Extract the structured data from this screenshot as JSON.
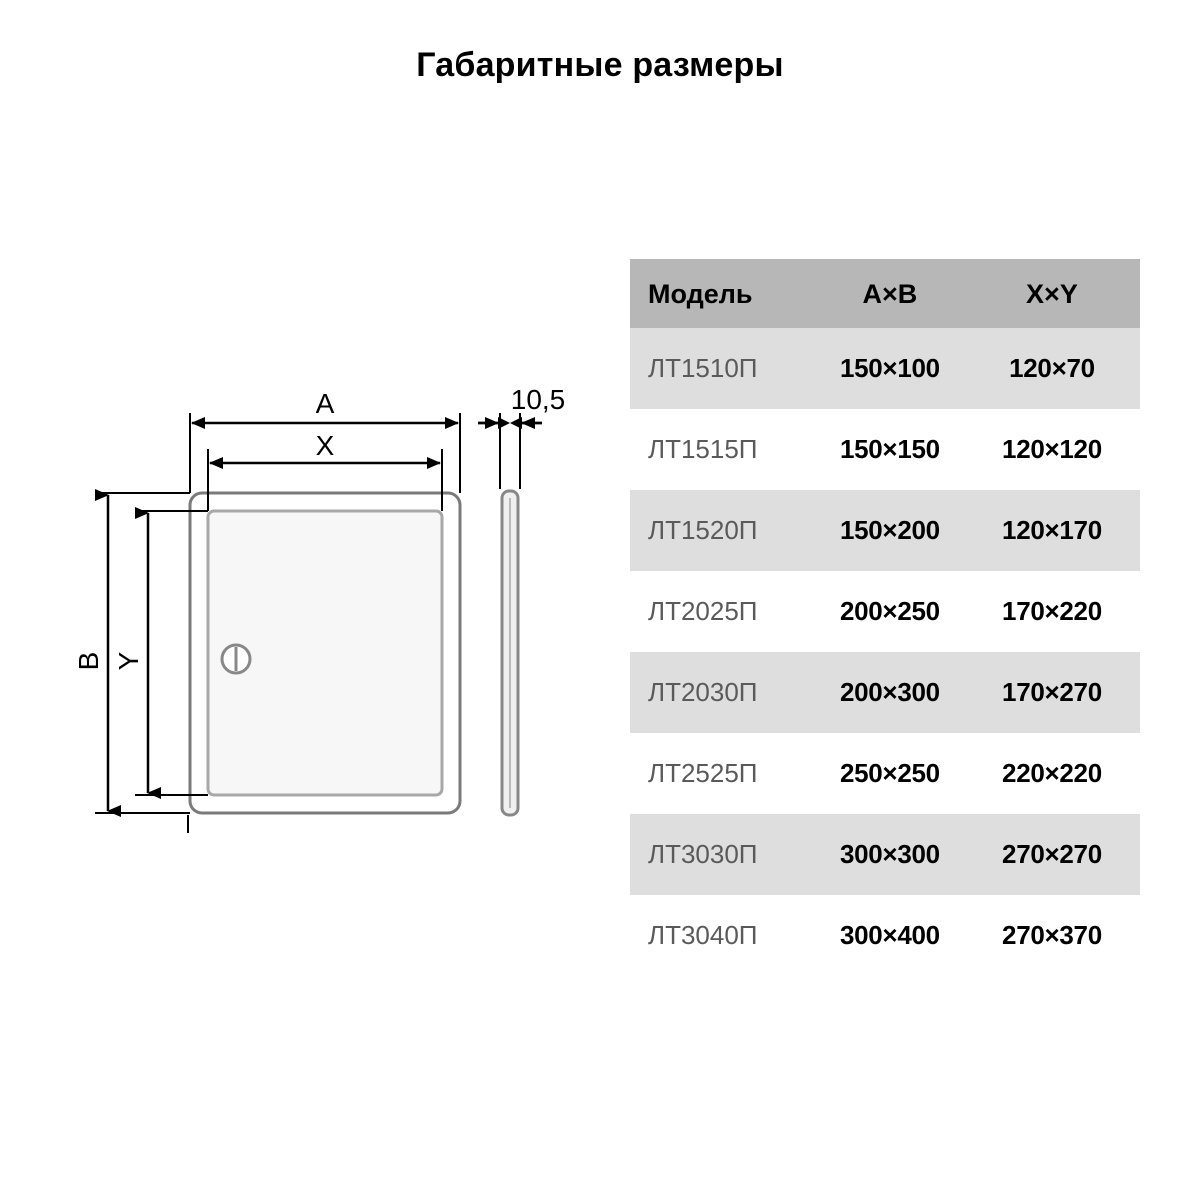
{
  "title": "Габаритные размеры",
  "diagram": {
    "labels": {
      "A": "A",
      "X": "X",
      "B": "B",
      "Y": "Y",
      "depth": "10,5"
    },
    "colors": {
      "line": "#000000",
      "fill": "#ffffff",
      "panel_shade": "#f0f1f1",
      "panel_stroke": "#9b9b9b"
    },
    "font_size_labels": 28
  },
  "table": {
    "header_bg": "#b7b7b7",
    "row_odd_bg": "#dedede",
    "row_even_bg": "#ffffff",
    "model_text_color": "#5a5a5a",
    "value_text_color": "#000000",
    "columns": [
      "Модель",
      "A×B",
      "X×Y"
    ],
    "rows": [
      {
        "model": "ЛТ1510П",
        "ab": "150×100",
        "xy": "120×70"
      },
      {
        "model": "ЛТ1515П",
        "ab": "150×150",
        "xy": "120×120"
      },
      {
        "model": "ЛТ1520П",
        "ab": "150×200",
        "xy": "120×170"
      },
      {
        "model": "ЛТ2025П",
        "ab": "200×250",
        "xy": "170×220"
      },
      {
        "model": "ЛТ2030П",
        "ab": "200×300",
        "xy": "170×270"
      },
      {
        "model": "ЛТ2525П",
        "ab": "250×250",
        "xy": "220×220"
      },
      {
        "model": "ЛТ3030П",
        "ab": "300×300",
        "xy": "270×270"
      },
      {
        "model": "ЛТ3040П",
        "ab": "300×400",
        "xy": "270×370"
      }
    ]
  }
}
